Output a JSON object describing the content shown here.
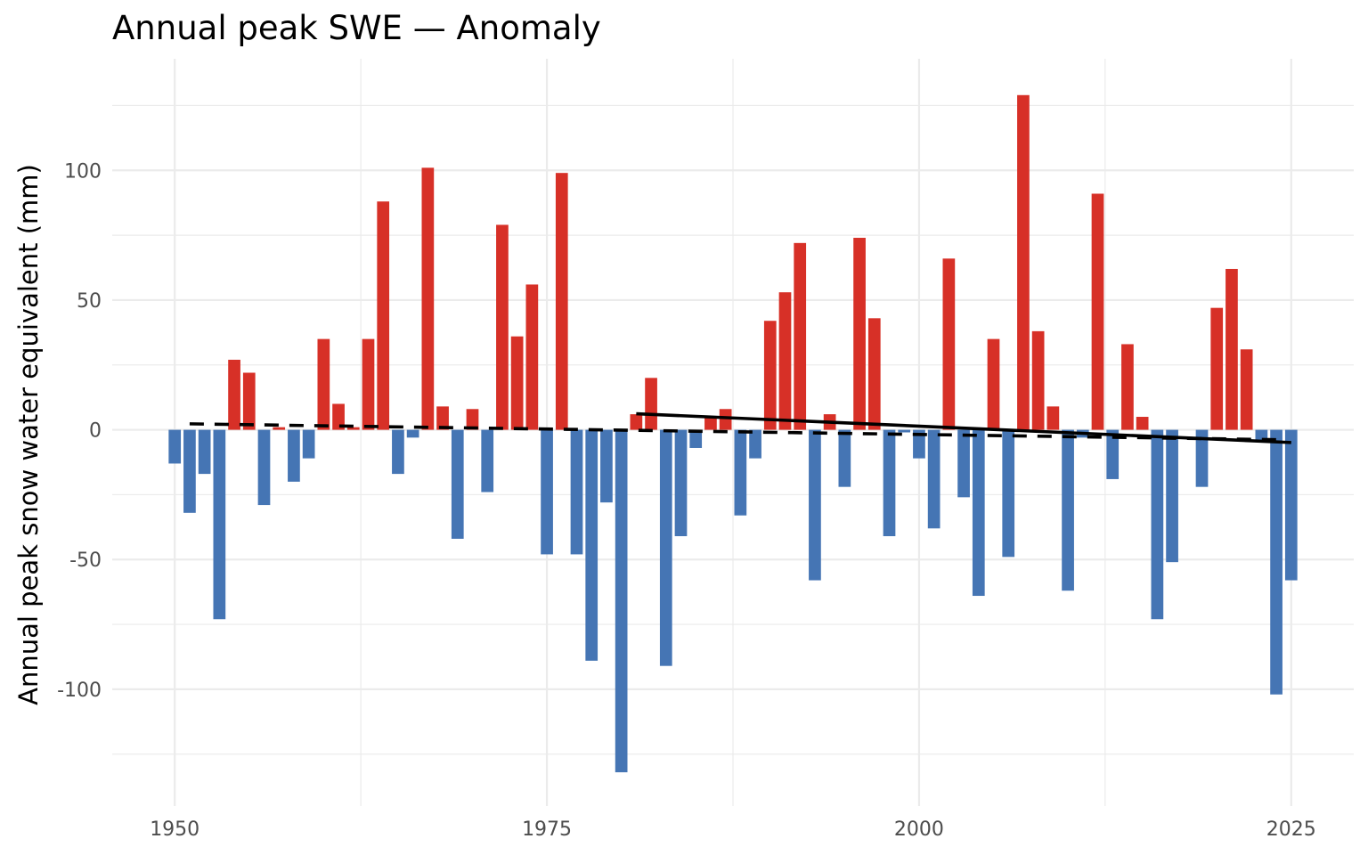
{
  "chart_data": {
    "type": "bar",
    "title": "Annual peak SWE — Anomaly",
    "xlabel": "",
    "ylabel": "Annual peak snow water equivalent (mm)",
    "xlim": [
      1945.8,
      2029.2
    ],
    "ylim": [
      -145,
      143
    ],
    "x_ticks": [
      1950,
      1975,
      2000,
      2025
    ],
    "y_ticks": [
      -100,
      -50,
      0,
      50,
      100
    ],
    "grid": true,
    "colors": {
      "positive": "#d73027",
      "negative": "#4575b4",
      "trend": "#000000",
      "background": "#ffffff",
      "grid": "#ebebeb"
    },
    "years": [
      1950,
      1951,
      1952,
      1953,
      1954,
      1955,
      1956,
      1957,
      1958,
      1959,
      1960,
      1961,
      1962,
      1963,
      1964,
      1965,
      1966,
      1967,
      1968,
      1969,
      1970,
      1971,
      1972,
      1973,
      1974,
      1975,
      1976,
      1977,
      1978,
      1979,
      1980,
      1981,
      1982,
      1983,
      1984,
      1985,
      1986,
      1987,
      1988,
      1989,
      1990,
      1991,
      1992,
      1993,
      1994,
      1995,
      1996,
      1997,
      1998,
      1999,
      2000,
      2001,
      2002,
      2003,
      2004,
      2005,
      2006,
      2007,
      2008,
      2009,
      2010,
      2011,
      2012,
      2013,
      2014,
      2015,
      2016,
      2017,
      2018,
      2019,
      2020,
      2021,
      2022,
      2023,
      2024,
      2025
    ],
    "values": [
      -13,
      -32,
      -17,
      -73,
      27,
      22,
      -29,
      1,
      -20,
      -11,
      35,
      10,
      1,
      35,
      88,
      -17,
      -3,
      101,
      9,
      -42,
      8,
      -24,
      79,
      36,
      56,
      -48,
      99,
      -48,
      -89,
      -28,
      -132,
      6,
      20,
      -91,
      -41,
      -7,
      5,
      8,
      -33,
      -11,
      42,
      53,
      72,
      -58,
      6,
      -22,
      74,
      43,
      -41,
      -1,
      -11,
      -38,
      66,
      -26,
      -64,
      35,
      -49,
      129,
      38,
      9,
      -62,
      -3,
      91,
      -19,
      33,
      5,
      -73,
      -51,
      0,
      -22,
      47,
      62,
      31,
      -4,
      -102,
      -58
    ],
    "series": [
      {
        "name": "",
        "style": "dashed",
        "x": [
          1951,
          2024
        ],
        "y": [
          2.3,
          -3.8
        ]
      },
      {
        "name": "",
        "style": "solid",
        "x": [
          1981,
          2025
        ],
        "y": [
          6.2,
          -4.9
        ]
      }
    ]
  }
}
